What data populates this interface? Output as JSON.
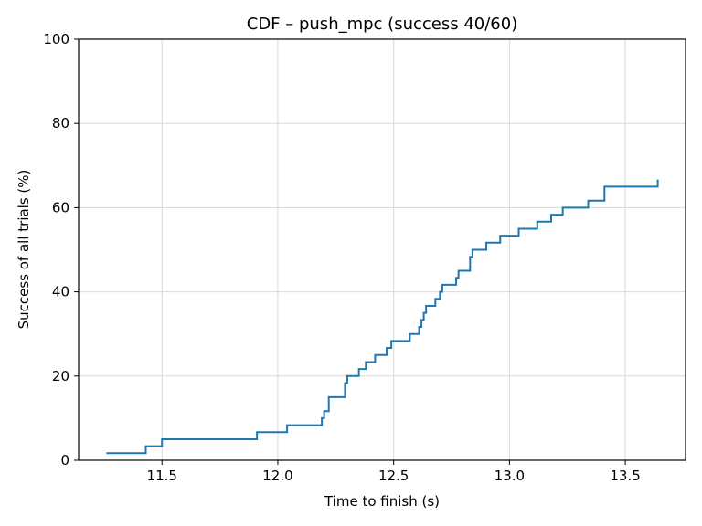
{
  "chart_data": {
    "type": "line",
    "title": "CDF – push_mpc  (success 40/60)",
    "xlabel": "Time to finish (s)",
    "ylabel": "Success of all trials (%)",
    "xlim": [
      11.14,
      13.76
    ],
    "ylim": [
      0,
      100
    ],
    "xticks": [
      11.5,
      12.0,
      12.5,
      13.0,
      13.5
    ],
    "xtick_labels": [
      "11.5",
      "12.0",
      "12.5",
      "13.0",
      "13.5"
    ],
    "yticks": [
      0,
      20,
      40,
      60,
      80,
      100
    ],
    "ytick_labels": [
      "0",
      "20",
      "40",
      "60",
      "80",
      "100"
    ],
    "grid": true,
    "series": [
      {
        "name": "push_mpc",
        "color": "#1f77b4",
        "step": "post",
        "x": [
          11.26,
          11.43,
          11.5,
          11.91,
          12.04,
          12.19,
          12.2,
          12.22,
          12.29,
          12.3,
          12.35,
          12.38,
          12.42,
          12.47,
          12.49,
          12.57,
          12.61,
          12.62,
          12.63,
          12.64,
          12.68,
          12.7,
          12.71,
          12.77,
          12.78,
          12.83,
          12.84,
          12.9,
          12.96,
          13.04,
          13.12,
          13.18,
          13.23,
          13.34,
          13.41,
          13.64
        ],
        "y": [
          1.67,
          3.33,
          5.0,
          6.67,
          8.33,
          10.0,
          11.67,
          15.0,
          18.33,
          20.0,
          21.67,
          23.33,
          25.0,
          26.67,
          28.33,
          30.0,
          31.67,
          33.33,
          35.0,
          36.67,
          38.33,
          40.0,
          41.67,
          43.33,
          45.0,
          48.33,
          50.0,
          51.67,
          53.33,
          55.0,
          56.67,
          58.33,
          60.0,
          61.67,
          65.0,
          66.67
        ]
      }
    ]
  }
}
